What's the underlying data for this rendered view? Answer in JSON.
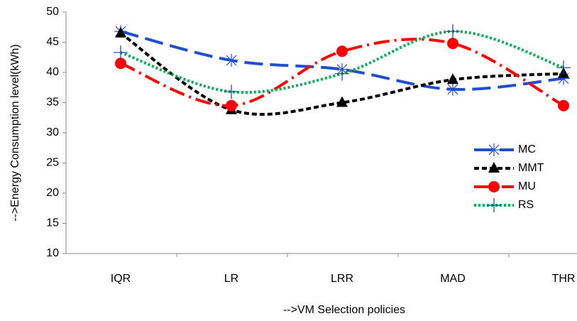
{
  "chart_data": {
    "type": "line",
    "x_label": "-->VM Selection policies",
    "y_label": "-->Energy Consumption level(kWh)",
    "categories": [
      "IQR",
      "LR",
      "LRR",
      "MAD",
      "THR"
    ],
    "series": [
      {
        "name": "MC",
        "color": "#1f4fd0",
        "dash": "26 10",
        "marker": "asterisk",
        "values": [
          46.8,
          42,
          40.5,
          37.2,
          39
        ]
      },
      {
        "name": "MMT",
        "color": "#000000",
        "dash": "7 4",
        "marker": "triangle",
        "values": [
          46.5,
          33.8,
          35,
          38.8,
          39.8
        ]
      },
      {
        "name": "MU",
        "color": "#ff0000",
        "dash": "22 7 3 7",
        "marker": "circle",
        "values": [
          41.5,
          34.5,
          43.5,
          44.8,
          34.5
        ]
      },
      {
        "name": "RS",
        "color": "#00b050",
        "dash": "3 3",
        "marker": "plus",
        "values": [
          43.3,
          36.8,
          39.8,
          46.8,
          40.8
        ]
      }
    ],
    "ylim": [
      10,
      50
    ],
    "yticks": [
      10,
      15,
      20,
      25,
      30,
      35,
      40,
      45,
      50
    ],
    "legend": "right",
    "grid": false
  }
}
